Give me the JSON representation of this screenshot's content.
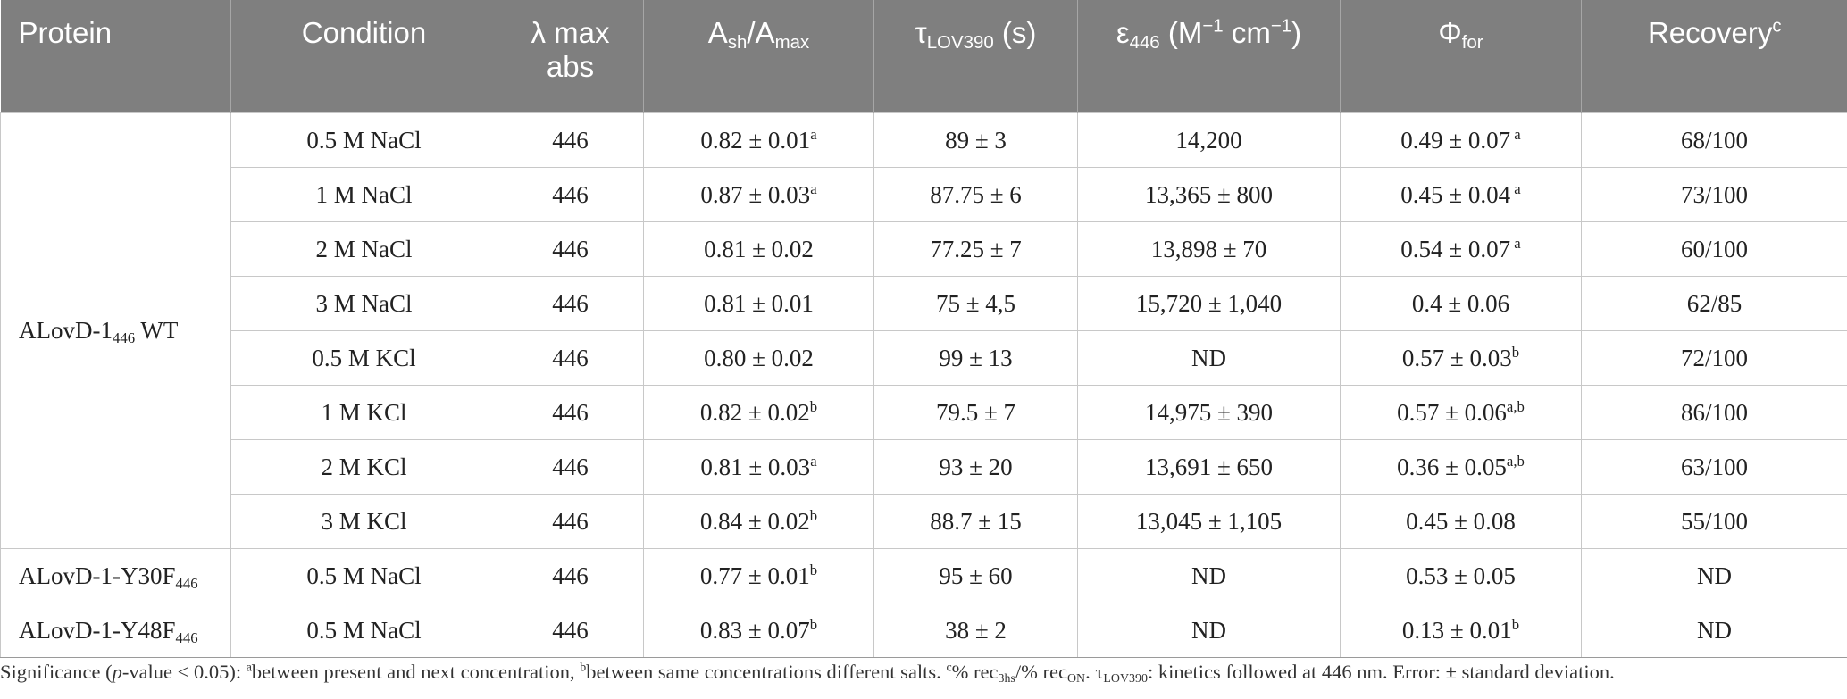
{
  "headers": {
    "protein": "Protein",
    "condition": "Condition",
    "lambda_line1": "λ max",
    "lambda_line2": "abs",
    "ratio_a1": "A",
    "ratio_a1_sub": "sh",
    "ratio_sep": "/A",
    "ratio_a2_sub": "max",
    "tau": "τ",
    "tau_sub": "LOV390",
    "tau_unit": " (s)",
    "eps": "ε",
    "eps_sub": "446",
    "eps_unit": " (M",
    "eps_exp1": "−1",
    "eps_unit2": " cm",
    "eps_exp2": "−1",
    "eps_close": ")",
    "phi": "Φ",
    "phi_sub": "for",
    "recovery": "Recovery",
    "recovery_sup": "c"
  },
  "proteins": {
    "wt_name": "ALovD-1",
    "wt_sub": "446",
    "wt_suffix": " WT",
    "y30_name": "ALovD-1-Y30F",
    "y30_sub": "446",
    "y48_name": "ALovD-1-Y48F",
    "y48_sub": "446"
  },
  "rows": [
    {
      "condition": "0.5 M NaCl",
      "lambda": "446",
      "ratio": "0.82 ± 0.01",
      "ratio_sup": "a",
      "tau": "89 ± 3",
      "eps": "14,200",
      "phi": "0.49 ± 0.07",
      "phi_sup": " a",
      "recovery": "68/100"
    },
    {
      "condition": "1 M NaCl",
      "lambda": "446",
      "ratio": "0.87 ± 0.03",
      "ratio_sup": "a",
      "tau": "87.75 ± 6",
      "eps": "13,365 ± 800",
      "phi": "0.45 ± 0.04",
      "phi_sup": " a",
      "recovery": "73/100"
    },
    {
      "condition": "2 M NaCl",
      "lambda": "446",
      "ratio": "0.81 ± 0.02",
      "ratio_sup": "",
      "tau": "77.25 ± 7",
      "eps": "13,898 ± 70",
      "phi": "0.54 ± 0.07",
      "phi_sup": " a",
      "recovery": "60/100"
    },
    {
      "condition": "3 M NaCl",
      "lambda": "446",
      "ratio": "0.81 ± 0.01",
      "ratio_sup": "",
      "tau": "75 ± 4,5",
      "eps": "15,720 ± 1,040",
      "phi": "0.4 ± 0.06",
      "phi_sup": "",
      "recovery": "62/85"
    },
    {
      "condition": "0.5 M KCl",
      "lambda": "446",
      "ratio": "0.80 ± 0.02",
      "ratio_sup": "",
      "tau": "99 ± 13",
      "eps": "ND",
      "phi": "0.57 ± 0.03",
      "phi_sup": "b",
      "recovery": "72/100"
    },
    {
      "condition": "1 M KCl",
      "lambda": "446",
      "ratio": "0.82 ± 0.02",
      "ratio_sup": "b",
      "tau": "79.5 ± 7",
      "eps": "14,975 ± 390",
      "phi": "0.57 ± 0.06",
      "phi_sup": "a,b",
      "recovery": "86/100"
    },
    {
      "condition": "2 M KCl",
      "lambda": "446",
      "ratio": "0.81 ± 0.03",
      "ratio_sup": "a",
      "tau": "93 ± 20",
      "eps": "13,691 ± 650",
      "phi": "0.36 ± 0.05",
      "phi_sup": "a,b",
      "recovery": "63/100"
    },
    {
      "condition": "3 M KCl",
      "lambda": "446",
      "ratio": "0.84 ± 0.02",
      "ratio_sup": "b",
      "tau": "88.7 ± 15",
      "eps": "13,045 ± 1,105",
      "phi": "0.45 ± 0.08",
      "phi_sup": "",
      "recovery": "55/100"
    },
    {
      "condition": "0.5 M NaCl",
      "lambda": "446",
      "ratio": "0.77 ± 0.01",
      "ratio_sup": "b",
      "tau": "95 ± 60",
      "eps": "ND",
      "phi": "0.53 ± 0.05",
      "phi_sup": "",
      "recovery": "ND"
    },
    {
      "condition": "0.5 M NaCl",
      "lambda": "446",
      "ratio": "0.83 ± 0.07",
      "ratio_sup": "b",
      "tau": "38 ± 2",
      "eps": "ND",
      "phi": "0.13 ± 0.01",
      "phi_sup": "b",
      "recovery": "ND"
    }
  ],
  "footnote": {
    "t1": "Significance (",
    "p": "p",
    "t2": "-value < 0.05): ",
    "sup_a": "a",
    "t3": "between present and next concentration, ",
    "sup_b": "b",
    "t4": "between same concentrations different salts. ",
    "sup_c": "c",
    "t5": "% rec",
    "sub_3hs": "3hs",
    "t6": "/% rec",
    "sub_on": "ON",
    "t7": ". τ",
    "sub_lov": "LOV390",
    "t8": ": kinetics followed at 446 nm. Error: ± standard deviation."
  }
}
